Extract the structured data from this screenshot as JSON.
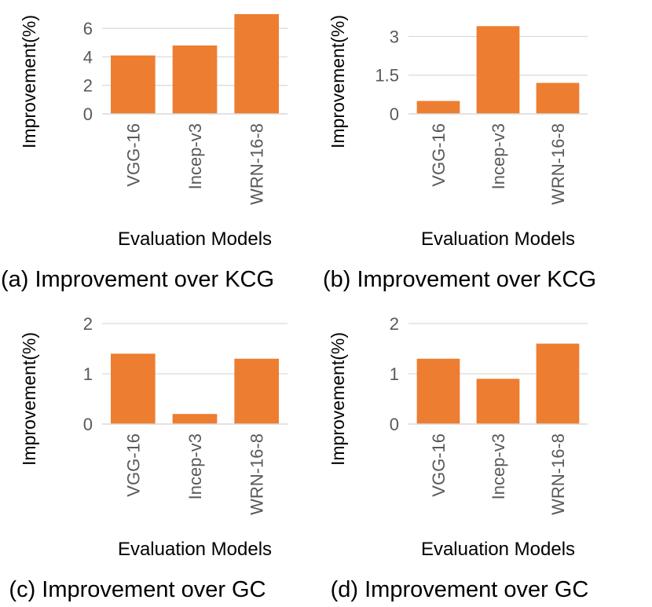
{
  "chart_data": [
    {
      "type": "bar",
      "caption": "(a) Improvement over KCG",
      "categories": [
        "VGG-16",
        "Incep-v3",
        "WRN-16-8"
      ],
      "values": [
        4.1,
        4.8,
        7.0
      ],
      "xlabel": "Evaluation Models",
      "ylabel": "Improvement(%)",
      "yticks": [
        0,
        2,
        4,
        6
      ],
      "ylim": [
        0,
        7
      ],
      "grid": true,
      "bar_color": "#ed7d31"
    },
    {
      "type": "bar",
      "caption": "(b) Improvement over KCG",
      "categories": [
        "VGG-16",
        "Incep-v3",
        "WRN-16-8"
      ],
      "values": [
        0.5,
        3.4,
        1.2
      ],
      "xlabel": "Evaluation Models",
      "ylabel": "Improvement(%)",
      "yticks": [
        0,
        1.5,
        3
      ],
      "ylim": [
        0,
        3.5
      ],
      "grid": true,
      "bar_color": "#ed7d31"
    },
    {
      "type": "bar",
      "caption": "(c) Improvement over GC",
      "categories": [
        "VGG-16",
        "Incep-v3",
        "WRN-16-8"
      ],
      "values": [
        1.4,
        0.2,
        1.3
      ],
      "xlabel": "Evaluation Models",
      "ylabel": "Improvement(%)",
      "yticks": [
        0,
        1,
        2
      ],
      "ylim": [
        0,
        2
      ],
      "grid": true,
      "bar_color": "#ed7d31"
    },
    {
      "type": "bar",
      "caption": "(d) Improvement over GC",
      "categories": [
        "VGG-16",
        "Incep-v3",
        "WRN-16-8"
      ],
      "values": [
        1.3,
        0.9,
        1.6
      ],
      "xlabel": "Evaluation Models",
      "ylabel": "Improvement(%)",
      "yticks": [
        0,
        1,
        2
      ],
      "ylim": [
        0,
        2
      ],
      "grid": true,
      "bar_color": "#ed7d31"
    }
  ]
}
